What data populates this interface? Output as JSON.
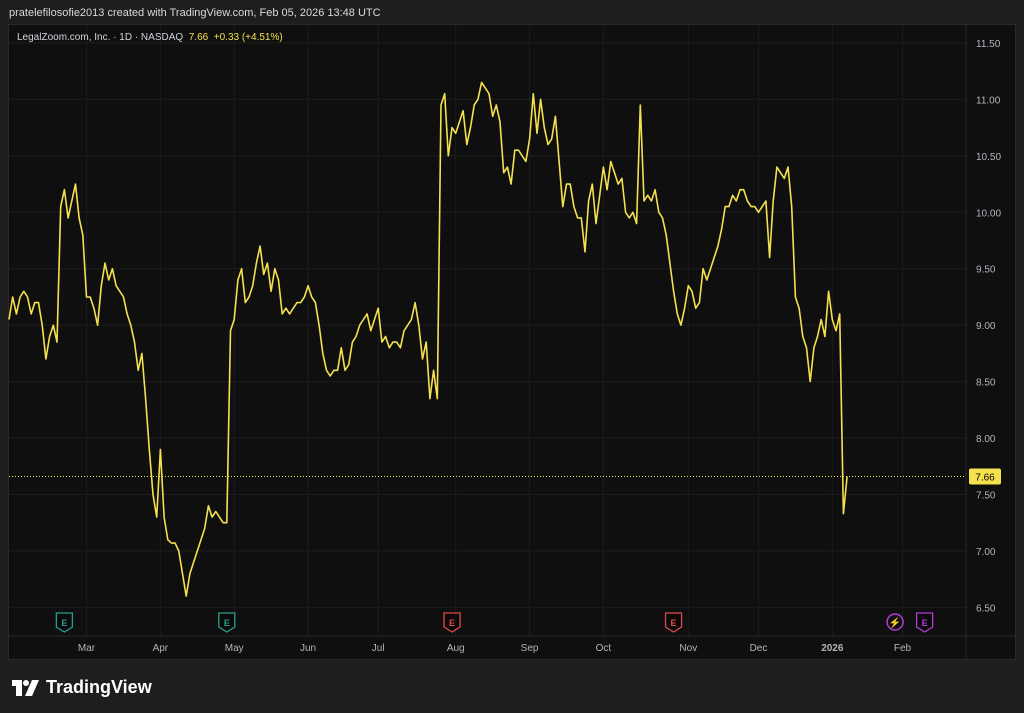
{
  "caption": "pratelefilosofie2013 created with TradingView.com, Feb 05, 2026 13:48 UTC",
  "legend": {
    "symbol": "LegalZoom.com, Inc. · 1D · NASDAQ",
    "last": "7.66",
    "change": "+0.33 (+4.51%)"
  },
  "brand": "TradingView",
  "colors": {
    "line": "#f5e14e",
    "background": "#0f0f0f",
    "grid": "#1d1d1d",
    "axis_text": "#b2b5be",
    "earnings_past": "#2a9d8f",
    "earnings_red": "#e04a4a",
    "future": "#b43cd8"
  },
  "chart_data": {
    "type": "line",
    "title": "LegalZoom.com, Inc. · 1D · NASDAQ",
    "ylim": [
      6.3,
      11.65
    ],
    "y_ticks": [
      "6.50",
      "7.00",
      "7.50",
      "8.00",
      "8.50",
      "9.00",
      "9.50",
      "10.00",
      "10.50",
      "11.00",
      "11.50"
    ],
    "x_ticks": [
      "Mar",
      "Apr",
      "May",
      "Jun",
      "Jul",
      "Aug",
      "Sep",
      "Oct",
      "Nov",
      "Dec",
      "2026",
      "Feb"
    ],
    "x_tick_index": [
      21,
      41,
      61,
      81,
      100,
      121,
      141,
      161,
      184,
      203,
      223,
      242
    ],
    "last_price_label": "7.66",
    "last_price": 7.66,
    "series": [
      {
        "values": [
          9.05,
          9.25,
          9.1,
          9.25,
          9.3,
          9.25,
          9.1,
          9.2,
          9.2,
          9.0,
          8.7,
          8.9,
          9.0,
          8.85,
          10.05,
          10.2,
          9.95,
          10.1,
          10.25,
          9.95,
          9.8,
          9.25,
          9.25,
          9.15,
          9.0,
          9.35,
          9.55,
          9.4,
          9.5,
          9.35,
          9.3,
          9.25,
          9.1,
          9.0,
          8.85,
          8.6,
          8.75,
          8.35,
          7.9,
          7.5,
          7.3,
          7.9,
          7.3,
          7.1,
          7.07,
          7.07,
          7.0,
          6.8,
          6.6,
          6.8,
          6.9,
          7.0,
          7.1,
          7.2,
          7.4,
          7.3,
          7.35,
          7.3,
          7.25,
          7.25,
          8.95,
          9.05,
          9.4,
          9.5,
          9.2,
          9.25,
          9.35,
          9.55,
          9.7,
          9.45,
          9.55,
          9.3,
          9.5,
          9.4,
          9.1,
          9.15,
          9.1,
          9.15,
          9.2,
          9.2,
          9.25,
          9.35,
          9.25,
          9.2,
          9.0,
          8.75,
          8.6,
          8.55,
          8.6,
          8.6,
          8.8,
          8.6,
          8.65,
          8.85,
          8.9,
          9.0,
          9.05,
          9.1,
          8.95,
          9.05,
          9.15,
          8.85,
          8.9,
          8.8,
          8.85,
          8.85,
          8.8,
          8.95,
          9.0,
          9.05,
          9.2,
          9.0,
          8.7,
          8.85,
          8.35,
          8.6,
          8.35,
          10.95,
          11.05,
          10.5,
          10.75,
          10.7,
          10.8,
          10.9,
          10.6,
          10.75,
          10.95,
          11.0,
          11.15,
          11.1,
          11.05,
          10.85,
          10.95,
          10.8,
          10.35,
          10.4,
          10.25,
          10.55,
          10.55,
          10.5,
          10.45,
          10.65,
          11.05,
          10.7,
          11.0,
          10.75,
          10.6,
          10.65,
          10.85,
          10.45,
          10.05,
          10.25,
          10.25,
          10.05,
          9.95,
          9.95,
          9.65,
          10.1,
          10.25,
          9.9,
          10.15,
          10.4,
          10.2,
          10.45,
          10.35,
          10.25,
          10.3,
          10.0,
          9.95,
          10.0,
          9.9,
          10.95,
          10.1,
          10.15,
          10.1,
          10.2,
          10.0,
          9.95,
          9.8,
          9.55,
          9.3,
          9.1,
          9.0,
          9.15,
          9.35,
          9.3,
          9.15,
          9.2,
          9.5,
          9.4,
          9.5,
          9.6,
          9.7,
          9.85,
          10.05,
          10.05,
          10.15,
          10.1,
          10.2,
          10.2,
          10.1,
          10.05,
          10.05,
          10.0,
          10.05,
          10.1,
          9.6,
          10.1,
          10.4,
          10.35,
          10.3,
          10.4,
          10.05,
          9.25,
          9.15,
          8.9,
          8.8,
          8.5,
          8.8,
          8.9,
          9.05,
          8.9,
          9.3,
          9.05,
          8.95,
          9.1,
          7.33,
          7.66
        ]
      }
    ],
    "event_markers": [
      {
        "label": "E",
        "index": 15,
        "kind": "earnings_past"
      },
      {
        "label": "E",
        "index": 59,
        "kind": "earnings_past"
      },
      {
        "label": "E",
        "index": 120,
        "kind": "earnings_red"
      },
      {
        "label": "E",
        "index": 180,
        "kind": "earnings_red"
      },
      {
        "label": "⚡",
        "index": 240,
        "kind": "dividend_purple"
      },
      {
        "label": "E",
        "index": 248,
        "kind": "earnings_future"
      }
    ]
  }
}
